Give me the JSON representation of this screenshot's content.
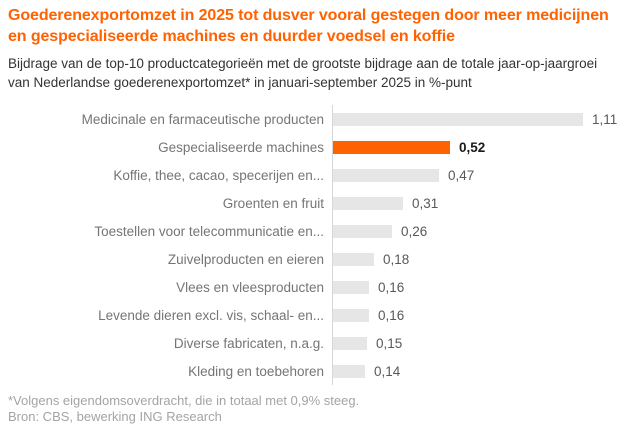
{
  "header": {
    "title": "Goederenexportomzet in 2025 tot dusver vooral gestegen door meer medicijnen en gespecialiseerde machines en duurder voedsel en koffie",
    "subtitle": "Bijdrage van de top-10 productcategorieën met de grootste bijdrage aan de totale jaar-op-jaargroei van Nederlandse goederenexportomzet* in januari-september 2025 in %-punt"
  },
  "chart_data": {
    "type": "bar",
    "orientation": "horizontal",
    "title": "Goederenexportomzet in 2025 tot dusver vooral gestegen door meer medicijnen en gespecialiseerde machines en duurder voedsel en koffie",
    "unit": "%-punt",
    "categories": [
      "Medicinale en farmaceutische producten",
      "Gespecialiseerde machines",
      "Koffie, thee, cacao, specerijen en...",
      "Groenten en fruit",
      "Toestellen voor telecommunicatie en...",
      "Zuivelproducten en eieren",
      "Vlees en vleesproducten",
      "Levende dieren excl. vis, schaal- en...",
      "Diverse fabricaten, n.a.g.",
      "Kleding en toebehoren"
    ],
    "values": [
      1.11,
      0.52,
      0.47,
      0.31,
      0.26,
      0.18,
      0.16,
      0.16,
      0.15,
      0.14
    ],
    "value_labels": [
      "1,11",
      "0,52",
      "0,47",
      "0,31",
      "0,26",
      "0,18",
      "0,16",
      "0,16",
      "0,15",
      "0,14"
    ],
    "highlighted_index": 1,
    "highlighted_category": "Gespecialiseerde machines",
    "xlim": [
      0,
      1.2
    ],
    "grid": false,
    "legend": false,
    "colors": {
      "bar": "#e6e6e6",
      "highlight": "#FF6200",
      "axis_line": "#d6d6d6",
      "category_label": "#757575",
      "value_label": "#595959",
      "highlight_value_label": "#1a1a1a"
    }
  },
  "footer": {
    "footnote": "*Volgens eigendomsoverdracht, die in totaal met 0,9% steeg.",
    "source": "Bron: CBS, bewerking ING Research"
  },
  "colors": {
    "accent": "#FF6200",
    "title": "#FF6200",
    "subtitle": "#333333",
    "footnote": "#a6a4a2",
    "background": "#ffffff"
  }
}
